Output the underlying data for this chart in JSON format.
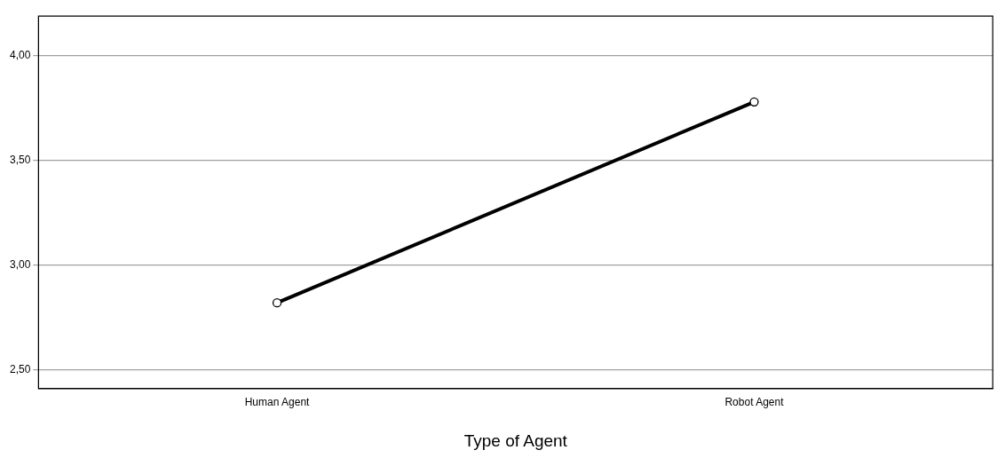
{
  "chart_data": {
    "type": "line",
    "xlabel": "Type of Agent",
    "categories": [
      "Human Agent",
      "Robot Agent"
    ],
    "series": [
      {
        "color": "#000000",
        "values": [
          2.82,
          3.78
        ]
      }
    ],
    "ylim": [
      2.41,
      4.19
    ],
    "yticks": [
      {
        "value": 2.5,
        "label": "2,50"
      },
      {
        "value": 3,
        "label": "3,00"
      },
      {
        "value": 3.5,
        "label": "3,50"
      },
      {
        "value": 4,
        "label": "4,00"
      }
    ],
    "grid": "y",
    "marker": "circle",
    "line_style": "solid",
    "legend": false
  }
}
